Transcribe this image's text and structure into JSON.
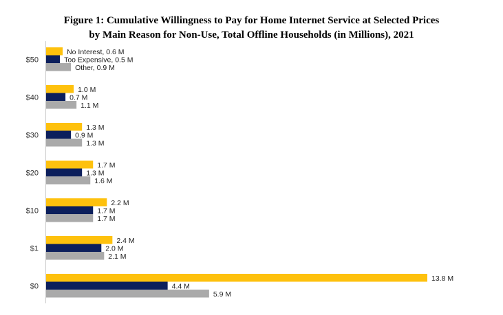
{
  "title_line1": "Figure 1: Cumulative Willingness to Pay for Home Internet Service at Selected Prices",
  "title_line2": "by Main Reason for Non-Use, Total Offline Households (in Millions), 2021",
  "chart_data": {
    "type": "bar",
    "orientation": "horizontal",
    "categories": [
      "$50",
      "$40",
      "$30",
      "$20",
      "$10",
      "$1",
      "$0"
    ],
    "series": [
      {
        "name": "No Interest",
        "color": "#fec10d",
        "values": [
          0.6,
          1.0,
          1.3,
          1.7,
          2.2,
          2.4,
          13.8
        ],
        "labels": [
          "No Interest, 0.6 M",
          "1.0 M",
          "1.3 M",
          "1.7 M",
          "2.2 M",
          "2.4 M",
          "13.8 M"
        ]
      },
      {
        "name": "Too Expensive",
        "color": "#0c1f5c",
        "values": [
          0.5,
          0.7,
          0.9,
          1.3,
          1.7,
          2.0,
          4.4
        ],
        "labels": [
          "Too Expensive, 0.5 M",
          "0.7 M",
          "0.9 M",
          "1.3 M",
          "1.7 M",
          "2.0 M",
          "4.4 M"
        ]
      },
      {
        "name": "Other",
        "color": "#aaaaaa",
        "values": [
          0.9,
          1.1,
          1.3,
          1.6,
          1.7,
          2.1,
          5.9
        ],
        "labels": [
          "Other, 0.9 M",
          "1.1 M",
          "1.3 M",
          "1.6 M",
          "1.7 M",
          "2.1 M",
          "5.9 M"
        ]
      }
    ],
    "xlim": [
      0,
      13.8
    ],
    "grid": false,
    "legend": "none"
  }
}
